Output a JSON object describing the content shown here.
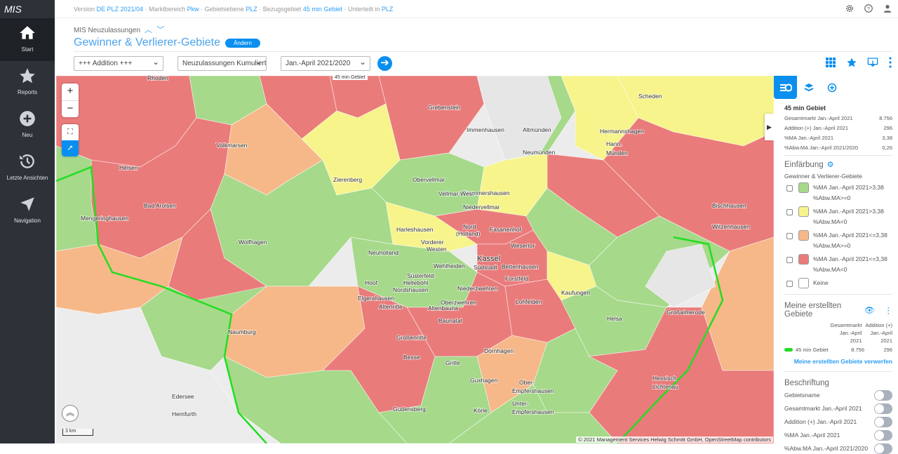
{
  "app": {
    "logo": "MIS"
  },
  "sidebar": {
    "items": [
      {
        "label": "Start",
        "icon": "home-icon",
        "active": true
      },
      {
        "label": "Reports",
        "icon": "star-icon"
      },
      {
        "label": "Neu",
        "icon": "plus-circle-icon"
      },
      {
        "label": "Letzte Ansichten",
        "icon": "history-icon"
      },
      {
        "label": "Navigation",
        "icon": "navigation-icon"
      }
    ]
  },
  "topbar": {
    "version_label": "Version",
    "version": "DE PLZ 2021/04",
    "markt_label": "· Marktbereich",
    "markt": "Pkw",
    "ebene_label": "· Gebietsebene",
    "ebene": "PLZ",
    "bezug_label": "· Bezugsgebiet",
    "bezug": "45 min Gebiet",
    "unterteilt_label": "· Unterteilt in",
    "unterteilt": "PLZ"
  },
  "header": {
    "subtitle": "MIS Neuzulassungen",
    "title": "Gewinner & Verlierer-Gebiete",
    "edit_label": "Ändern"
  },
  "toolbar": {
    "select1": "+++ Addition +++",
    "select2": "Neuzulassungen Kumuliert",
    "select3": "Jan.-April 2021/2020"
  },
  "map": {
    "area_label": "45 min Gebiet",
    "scale": "3 km",
    "attribution": "© 2021 Management Services Helwig Schmitt GmbH, OpenStreetMap contributors",
    "colors": {
      "green": "#a6d98a",
      "yellow": "#f7f48b",
      "orange": "#f6b889",
      "red": "#ea7b7b",
      "border": "#22dd22"
    },
    "places": [
      "Rhoden",
      "Grebenstein",
      "Immenhausen",
      "Altmünden",
      "Hermannshagen",
      "Hann.",
      "Münden",
      "Scheden",
      "Neumünden",
      "Volkmarsen",
      "Helsen",
      "Bad Arolsen",
      "Mengeringhausen",
      "Zierenberg",
      "Obervellmar",
      "Frommershausen",
      "Niedervellmar",
      "Vellmar-West",
      "Harleshausen",
      "Nord",
      "(Holland)",
      "Fasanenhof",
      "Vorderer",
      "Westen",
      "Wolfhagen",
      "Kassel",
      "Neuholland",
      "Wesertor",
      "Wehlheiden",
      "Südstadt",
      "Bettenhausen",
      "Forstfeld",
      "Süsterfeld-",
      "Helleböhl",
      "Hoof",
      "Nordshausen",
      "Niederzwehren",
      "Kaufungen",
      "Elgershausen",
      "Oberzwehren",
      "Altenritte",
      "Altenbauna",
      "Baunatal",
      "Lohfelden",
      "Helsa",
      "Großalmerode",
      "Naumburg",
      "Großenritte",
      "Bischhausen",
      "Witzenhausen",
      "Dörnhagen",
      "Besse",
      "Gritte",
      "Guxhagen",
      "Ober-",
      "Empfershausen",
      "Unter-",
      "Empfershausen",
      "Körle",
      "Hessisch",
      "Lichtenau",
      "Edersee",
      "Hemfurth",
      "Gudensberg"
    ]
  },
  "panel": {
    "area_title": "45 min Gebiet",
    "stats": [
      {
        "label": "Gesamtmarkt Jan.-April 2021",
        "value": "8.756"
      },
      {
        "label": "Addition (+) Jan.-April 2021",
        "value": "296"
      },
      {
        "label": "%MA Jan.-April 2021",
        "value": "3,38"
      },
      {
        "label": "%Abw.MA Jan.-April 2021/2020",
        "value": "0,26"
      }
    ],
    "coloring_title": "Einfärbung",
    "coloring_sub": "Gewinner & Verlierer-Gebiete",
    "legend": [
      {
        "l1": "%MA Jan.-April 2021>3,38",
        "l2": "%Abw.MA>=0",
        "color": "#a6d98a"
      },
      {
        "l1": "%MA Jan.-April 2021>3,38",
        "l2": "%Abw.MA<0",
        "color": "#f7f48b"
      },
      {
        "l1": "%MA Jan.-April 2021<=3,38",
        "l2": "%Abw.MA>=0",
        "color": "#f6b889"
      },
      {
        "l1": "%MA Jan.-April 2021<=3,38",
        "l2": "%Abw.MA<0",
        "color": "#ea7b7b"
      },
      {
        "l1": "Keine",
        "l2": "",
        "color": "#ffffff"
      }
    ],
    "my_areas_title": "Meine erstellten Gebiete",
    "col1": [
      "Gesamtmarkt",
      "Jan.-April",
      "2021"
    ],
    "col2": [
      "Addition (+)",
      "Jan.-April",
      "2021"
    ],
    "my_area_row": {
      "name": "45 min Gebiet",
      "v1": "8.756",
      "v2": "296"
    },
    "discard_link": "Meine erstellten Gebiete verwerfen",
    "labels_title": "Beschriftung",
    "toggles": [
      "Gebietsname",
      "Gesamtmarkt Jan.-April 2021",
      "Addition (+) Jan.-April 2021",
      "%MA Jan.-April 2021",
      "%Abw.MA Jan.-April 2021/2020"
    ]
  }
}
